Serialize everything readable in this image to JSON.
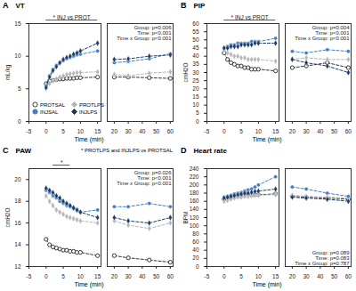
{
  "chart_data": [
    {
      "type": "line",
      "panel": "A",
      "title": "VT",
      "y_label": "mL/kg",
      "x_label": "Time (min)",
      "xlim": [
        -5,
        16
      ],
      "xticks": [
        -5,
        0,
        5,
        10,
        15
      ],
      "x2lim": [
        15,
        62
      ],
      "x2ticks": [
        20,
        30,
        40,
        50,
        60
      ],
      "ylim": [
        0,
        15
      ],
      "yticks": [
        0,
        5,
        10,
        15
      ],
      "x": [
        0,
        1,
        2,
        3,
        4,
        5,
        6,
        7,
        8,
        9,
        10,
        15
      ],
      "x2": [
        20,
        30,
        45,
        60
      ],
      "legend": "bottom-left",
      "annotations": [
        {
          "text": "* INJ vs PROT",
          "span": [
            0,
            15
          ]
        }
      ],
      "stats": [
        "Group: p=0.006",
        "Time: p<0.001",
        "Time x Group: p<0.001"
      ],
      "series": [
        {
          "name": "PROTSAL",
          "color": "#333333",
          "marker": "open-circle",
          "line_style": "dashed",
          "values": [
            5.8,
            6.2,
            6.3,
            6.4,
            6.5,
            6.5,
            6.6,
            6.6,
            6.6,
            6.7,
            6.7,
            6.8
          ],
          "values2": [
            6.8,
            6.8,
            6.7,
            6.6
          ]
        },
        {
          "name": "PROTLPS",
          "color": "#b5b5b5",
          "marker": "diamond",
          "line_style": "dashed",
          "values": [
            5.0,
            5.8,
            6.2,
            6.5,
            6.8,
            7.0,
            7.2,
            7.3,
            7.4,
            7.5,
            7.5,
            7.6
          ],
          "values2": [
            7.2,
            7.0,
            7.4,
            7.6
          ]
        },
        {
          "name": "INJSAL",
          "color": "#3d7fc4",
          "marker": "circle",
          "line_style": "dashed",
          "values": [
            5.5,
            7.0,
            8.0,
            8.6,
            9.0,
            9.3,
            9.6,
            9.8,
            10.0,
            10.2,
            10.3,
            10.8
          ],
          "values2": [
            9.0,
            9.2,
            9.6,
            10.4
          ]
        },
        {
          "name": "INJLPS",
          "color": "#1c3a66",
          "marker": "diamond",
          "line_style": "dashed",
          "values": [
            5.2,
            6.8,
            7.8,
            8.4,
            9.0,
            9.5,
            9.8,
            10.0,
            10.3,
            10.5,
            10.8,
            12.0
          ],
          "values2": [
            9.5,
            9.6,
            10.0,
            10.2
          ]
        }
      ]
    },
    {
      "type": "line",
      "panel": "B",
      "title": "PIP",
      "y_label": "cmH2O",
      "x_label": "Time (min)",
      "xlim": [
        -5,
        16
      ],
      "xticks": [
        -5,
        0,
        5,
        10,
        15
      ],
      "x2lim": [
        15,
        62
      ],
      "x2ticks": [
        20,
        30,
        40,
        50,
        60
      ],
      "ylim": [
        0,
        60
      ],
      "yticks": [
        0,
        5,
        10,
        15,
        20,
        25,
        30,
        35,
        40,
        45,
        50,
        55,
        60
      ],
      "x": [
        0,
        1,
        2,
        3,
        4,
        5,
        6,
        7,
        8,
        9,
        10,
        15
      ],
      "x2": [
        20,
        30,
        45,
        60
      ],
      "annotations": [
        {
          "text": "* INJ vs PROT",
          "span": [
            0,
            15
          ]
        }
      ],
      "stats": [
        "Group: p=0.004",
        "Time: p<0.001",
        "Time x Group: p<0.001"
      ],
      "series": [
        {
          "name": "PROTSAL",
          "color": "#333333",
          "marker": "open-circle",
          "line_style": "dashed",
          "values": [
            42,
            38,
            36,
            35,
            34,
            34,
            33,
            33,
            32,
            32,
            32,
            31
          ],
          "values2": [
            33,
            34,
            36,
            33
          ]
        },
        {
          "name": "PROTLPS",
          "color": "#b5b5b5",
          "marker": "diamond",
          "line_style": "dashed",
          "values": [
            44,
            42,
            41,
            40,
            40,
            39,
            39,
            38,
            38,
            38,
            38,
            37
          ],
          "values2": [
            38,
            39,
            38,
            38
          ]
        },
        {
          "name": "INJSAL",
          "color": "#3d7fc4",
          "marker": "circle",
          "line_style": "dashed",
          "values": [
            45,
            46,
            47,
            47,
            48,
            48,
            48,
            48,
            49,
            49,
            49,
            51
          ],
          "values2": [
            43,
            42,
            44,
            43
          ]
        },
        {
          "name": "INJLPS",
          "color": "#1c3a66",
          "marker": "diamond",
          "line_style": "dashed",
          "values": [
            45,
            45,
            46,
            46,
            46,
            47,
            47,
            47,
            47,
            48,
            48,
            48
          ],
          "values2": [
            38,
            36,
            34,
            30
          ]
        }
      ]
    },
    {
      "type": "line",
      "panel": "C",
      "title": "PAW",
      "y_label": "cmH2O",
      "x_label": "Time (min)",
      "xlim": [
        -5,
        16
      ],
      "xticks": [
        -5,
        0,
        5,
        10,
        15
      ],
      "x2lim": [
        15,
        62
      ],
      "x2ticks": [
        20,
        30,
        40,
        50,
        60
      ],
      "ylim": [
        12,
        21
      ],
      "yticks": [
        12,
        14,
        16,
        18,
        20
      ],
      "x": [
        0,
        1,
        2,
        3,
        4,
        5,
        6,
        7,
        8,
        9,
        10,
        15
      ],
      "x2": [
        20,
        30,
        45,
        60
      ],
      "annotations": [
        {
          "text": "*",
          "span": [
            2,
            7
          ]
        }
      ],
      "note": "* PROTLPS and INJLPS vs PROTSAL",
      "stats": [
        "Group: p=0.026",
        "Time: p<0.001",
        "Time x Group: p<0.001"
      ],
      "series": [
        {
          "name": "PROTSAL",
          "color": "#333333",
          "marker": "open-circle",
          "line_style": "dashed",
          "values": [
            14.5,
            14.0,
            13.8,
            13.7,
            13.6,
            13.5,
            13.5,
            13.4,
            13.4,
            13.3,
            13.3,
            13.0
          ],
          "values2": [
            13.0,
            12.8,
            12.6,
            12.4
          ]
        },
        {
          "name": "PROTLPS",
          "color": "#b5b5b5",
          "marker": "diamond",
          "line_style": "dashed",
          "values": [
            18.5,
            18.0,
            17.6,
            17.2,
            17.0,
            16.8,
            16.6,
            16.5,
            16.4,
            16.3,
            16.2,
            16.0
          ],
          "values2": [
            16.2,
            15.8,
            15.5,
            16.0
          ]
        },
        {
          "name": "INJSAL",
          "color": "#3d7fc4",
          "marker": "circle",
          "line_style": "dashed",
          "values": [
            19.0,
            18.8,
            18.5,
            18.3,
            18.0,
            17.8,
            17.6,
            17.5,
            17.3,
            17.2,
            17.0,
            17.2
          ],
          "values2": [
            17.5,
            17.5,
            17.8,
            17.5
          ]
        },
        {
          "name": "INJLPS",
          "color": "#1c3a66",
          "marker": "diamond",
          "line_style": "dashed",
          "values": [
            19.2,
            19.0,
            18.8,
            18.5,
            18.3,
            18.0,
            17.8,
            17.6,
            17.4,
            17.2,
            17.0,
            16.5
          ],
          "values2": [
            16.5,
            16.2,
            16.0,
            16.5
          ]
        }
      ]
    },
    {
      "type": "line",
      "panel": "D",
      "title": "Heart rate",
      "y_label": "BPM",
      "x_label": "Time (min)",
      "xlim": [
        -5,
        16
      ],
      "xticks": [
        -5,
        0,
        5,
        10,
        15
      ],
      "x2lim": [
        15,
        62
      ],
      "x2ticks": [
        20,
        30,
        40,
        50,
        60
      ],
      "ylim": [
        0,
        240
      ],
      "yticks": [
        0,
        20,
        40,
        60,
        80,
        100,
        120,
        140,
        160,
        180,
        200,
        220,
        240
      ],
      "x": [
        0,
        1,
        2,
        3,
        4,
        5,
        6,
        7,
        8,
        9,
        10,
        15
      ],
      "x2": [
        20,
        30,
        45,
        60
      ],
      "stats": [
        "Group: p=0.089",
        "Time: p=0.083",
        "Time x Group: p=0.787"
      ],
      "series": [
        {
          "name": "PROTSAL",
          "color": "#333333",
          "marker": "open-circle",
          "line_style": "dashed",
          "values": [
            165,
            168,
            170,
            170,
            172,
            172,
            174,
            175,
            175,
            176,
            176,
            178
          ],
          "values2": [
            172,
            170,
            168,
            165
          ]
        },
        {
          "name": "PROTLPS",
          "color": "#b5b5b5",
          "marker": "diamond",
          "line_style": "dashed",
          "values": [
            160,
            162,
            165,
            168,
            170,
            170,
            172,
            172,
            174,
            175,
            175,
            176
          ],
          "values2": [
            175,
            172,
            170,
            168
          ]
        },
        {
          "name": "INJSAL",
          "color": "#3d7fc4",
          "marker": "circle",
          "line_style": "dashed",
          "values": [
            170,
            172,
            175,
            178,
            180,
            182,
            185,
            188,
            190,
            195,
            200,
            220
          ],
          "values2": [
            195,
            190,
            180,
            172
          ]
        },
        {
          "name": "INJLPS",
          "color": "#1c3a66",
          "marker": "diamond",
          "line_style": "dashed",
          "values": [
            168,
            170,
            172,
            174,
            176,
            178,
            180,
            180,
            182,
            184,
            185,
            190
          ],
          "values2": [
            170,
            168,
            165,
            160
          ]
        }
      ]
    }
  ]
}
